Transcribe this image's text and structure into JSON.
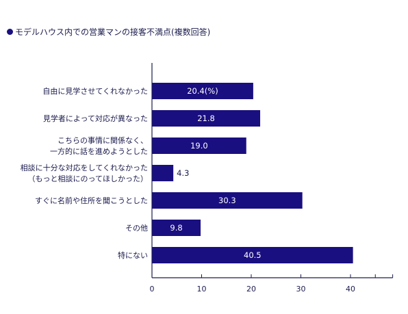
{
  "chart_data": {
    "type": "bar",
    "orientation": "horizontal",
    "title": "モデルハウス内での営業マンの接客不満点(複数回答)",
    "categories": [
      [
        "自由に見学させてくれなかった"
      ],
      [
        "見学者によって対応が異なった"
      ],
      [
        "こちらの事情に関係なく、",
        "一方的に話を進めようとした"
      ],
      [
        "相談に十分な対応をしてくれなかった",
        "（もっと相談にのってほしかった）"
      ],
      [
        "すぐに名前や住所を聞こうとした"
      ],
      [
        "その他"
      ],
      [
        "特にない"
      ]
    ],
    "values": [
      20.4,
      21.8,
      19.0,
      4.3,
      30.3,
      9.8,
      40.5
    ],
    "value_labels": [
      "20.4(%)",
      "21.8",
      "19.0",
      "4.3",
      "30.3",
      "9.8",
      "40.5"
    ],
    "xticks": [
      "0",
      "10",
      "20",
      "30",
      "40"
    ],
    "xlim": [
      0,
      48.5
    ],
    "grid": false,
    "colors": {
      "bar": "#1a0f80",
      "axis": "#1a1a4d",
      "text": "#1a1a4d"
    }
  }
}
